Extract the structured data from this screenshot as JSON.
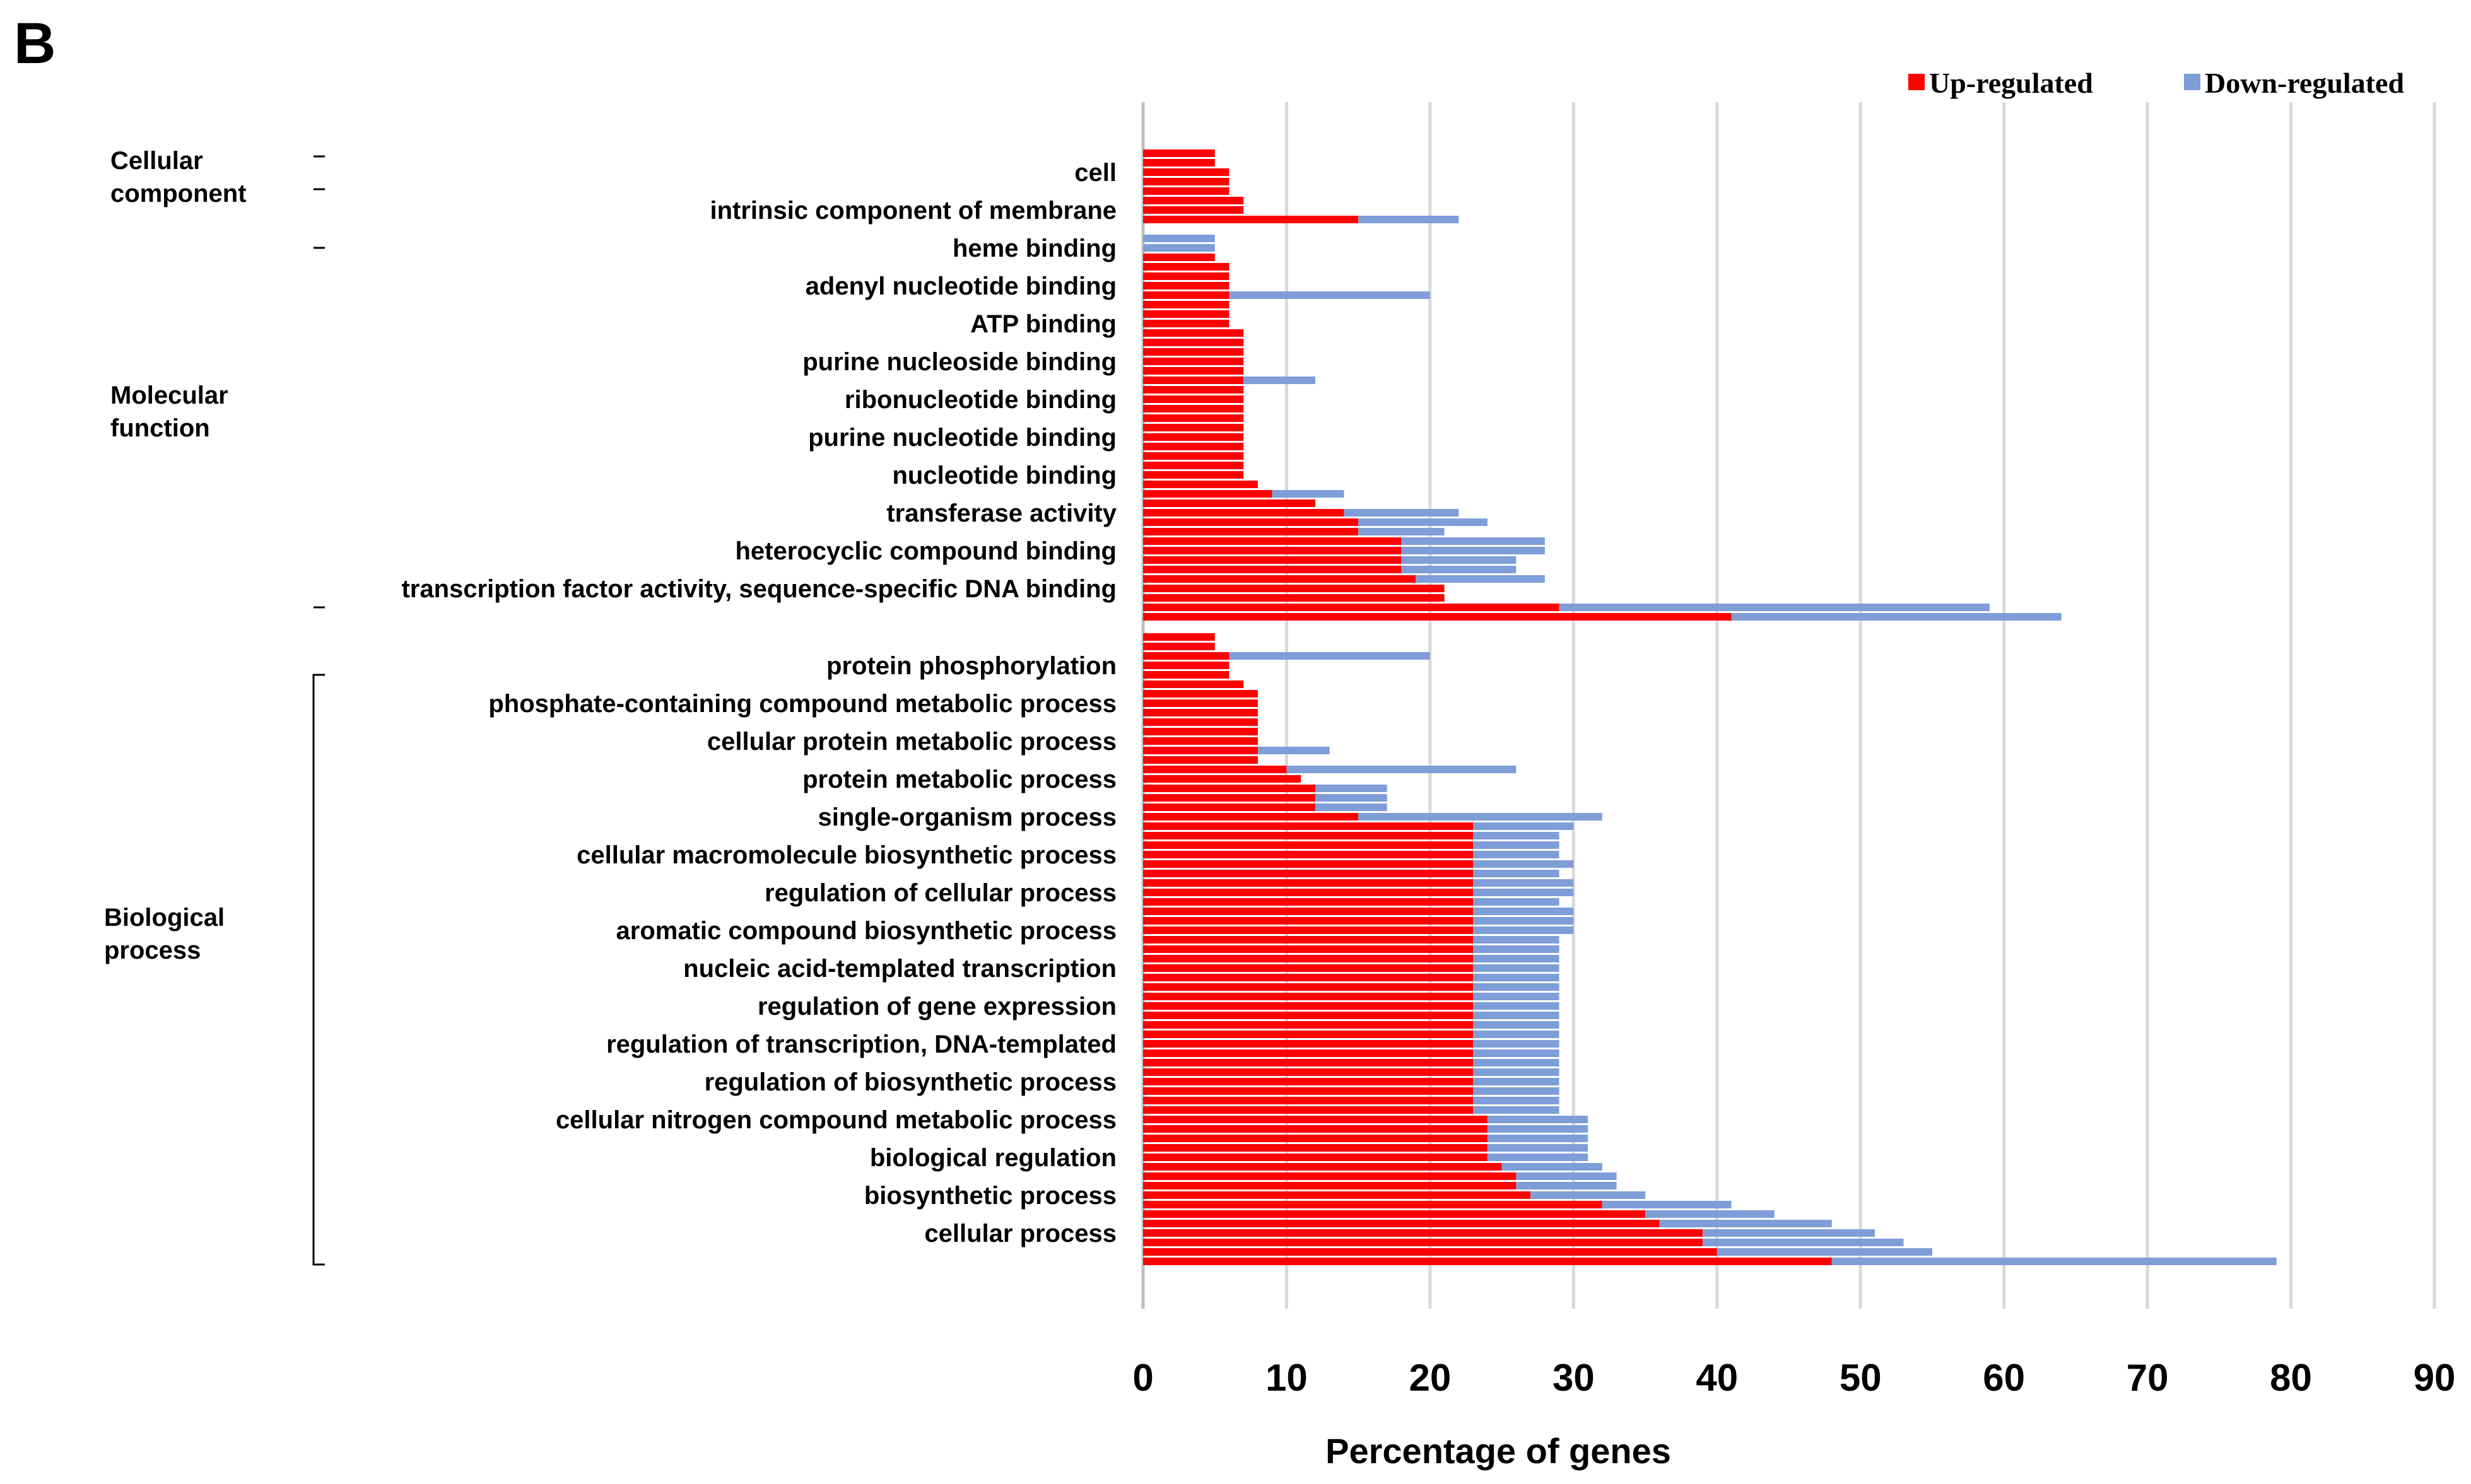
{
  "panel_letter": "B",
  "chart_data": {
    "type": "bar",
    "orientation": "horizontal",
    "stacked": true,
    "xlabel": "Percentage of genes",
    "xlim": [
      0,
      90
    ],
    "xticks": [
      "0",
      "10",
      "20",
      "30",
      "40",
      "50",
      "60",
      "70",
      "80",
      "90"
    ],
    "grid": true,
    "legend_position": "top-right",
    "colors": {
      "up": "#ff0000",
      "down": "#7f9ed8"
    },
    "series": [
      {
        "name": "Up-regulated",
        "key": "up"
      },
      {
        "name": "Down-regulated",
        "key": "down"
      }
    ],
    "groups": [
      {
        "name": "Cellular component",
        "labels": {
          "2": "cell",
          "6": "intrinsic component of membrane"
        },
        "up": [
          5,
          5,
          6,
          6,
          6,
          7,
          7,
          15
        ],
        "down": [
          0,
          0,
          0,
          0,
          0,
          0,
          0,
          7
        ]
      },
      {
        "name": "Molecular function",
        "labels": {
          "1": "heme binding",
          "5": "adenyl nucleotide binding",
          "9": "ATP binding",
          "13": "purine nucleoside binding",
          "17": "ribonucleotide binding",
          "21": "purine nucleotide binding",
          "25": "nucleotide binding",
          "29": "transferase activity",
          "33": "heterocyclic compound binding",
          "37": "transcription factor activity, sequence-specific DNA binding"
        },
        "up": [
          0,
          0,
          5,
          6,
          6,
          6,
          6,
          6,
          6,
          6,
          7,
          7,
          7,
          7,
          7,
          7,
          7,
          7,
          7,
          7,
          7,
          7,
          7,
          7,
          7,
          7,
          8,
          9,
          12,
          14,
          15,
          15,
          18,
          18,
          18,
          18,
          19,
          21,
          21,
          29,
          41
        ],
        "down": [
          5,
          5,
          0,
          0,
          0,
          0,
          14,
          0,
          0,
          0,
          0,
          0,
          0,
          0,
          0,
          5,
          0,
          0,
          0,
          0,
          0,
          0,
          0,
          0,
          0,
          0,
          0,
          5,
          0,
          8,
          9,
          6,
          10,
          10,
          8,
          8,
          9,
          0,
          0,
          30,
          23
        ]
      },
      {
        "name": "Biological process",
        "labels": {
          "3": "protein phosphorylation",
          "7": "phosphate-containing compound metabolic process",
          "11": "cellular protein metabolic process",
          "15": "protein metabolic process",
          "19": "single-organism process",
          "23": "cellular macromolecule biosynthetic process",
          "27": "regulation of cellular process",
          "31": "aromatic compound biosynthetic process",
          "35": "nucleic acid-templated transcription",
          "39": "regulation of gene expression",
          "43": "regulation of transcription, DNA-templated",
          "47": "regulation of biosynthetic process",
          "51": "cellular nitrogen compound metabolic process",
          "55": "biological regulation",
          "59": "biosynthetic process",
          "63": "cellular process"
        },
        "up": [
          5,
          5,
          6,
          6,
          6,
          7,
          8,
          8,
          8,
          8,
          8,
          8,
          8,
          8,
          10,
          11,
          12,
          12,
          12,
          15,
          23,
          23,
          23,
          23,
          23,
          23,
          23,
          23,
          23,
          23,
          23,
          23,
          23,
          23,
          23,
          23,
          23,
          23,
          23,
          23,
          23,
          23,
          23,
          23,
          23,
          23,
          23,
          23,
          23,
          23,
          23,
          24,
          24,
          24,
          24,
          24,
          25,
          26,
          26,
          27,
          32,
          35,
          36,
          39,
          39,
          40,
          48
        ],
        "down": [
          0,
          0,
          14,
          0,
          0,
          0,
          0,
          0,
          0,
          0,
          0,
          0,
          5,
          0,
          16,
          0,
          5,
          5,
          5,
          17,
          7,
          6,
          6,
          6,
          7,
          6,
          7,
          7,
          6,
          7,
          7,
          7,
          6,
          6,
          6,
          6,
          6,
          6,
          6,
          6,
          6,
          6,
          6,
          6,
          6,
          6,
          6,
          6,
          6,
          6,
          6,
          7,
          7,
          7,
          7,
          7,
          7,
          7,
          7,
          8,
          9,
          9,
          12,
          12,
          14,
          15,
          31
        ]
      }
    ]
  }
}
